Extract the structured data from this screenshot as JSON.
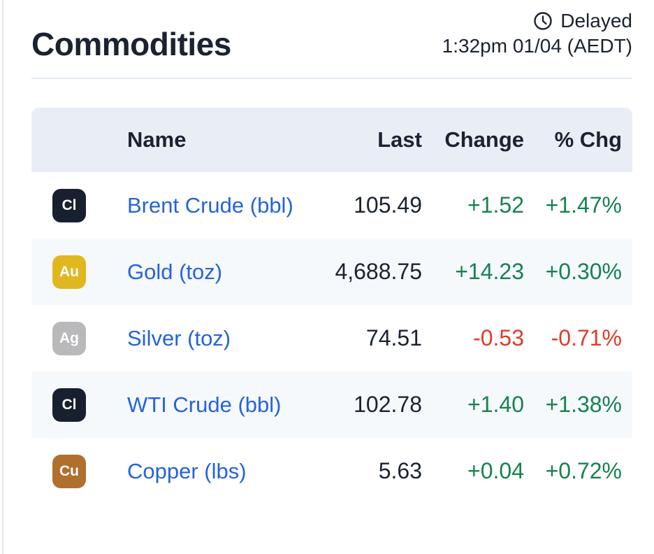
{
  "header": {
    "title": "Commodities",
    "status": {
      "label": "Delayed",
      "timestamp": "1:32pm 01/04 (AEDT)"
    }
  },
  "table": {
    "columns": [
      "Name",
      "Last",
      "Change",
      "% Chg"
    ],
    "rows": [
      {
        "symbol": "Cl",
        "badge_color": "#18202f",
        "name": "Brent Crude (bbl)",
        "last": "105.49",
        "change": "+1.52",
        "pct_chg": "+1.47%",
        "direction": "up"
      },
      {
        "symbol": "Au",
        "badge_color": "#e1b71f",
        "name": "Gold (toz)",
        "last": "4,688.75",
        "change": "+14.23",
        "pct_chg": "+0.30%",
        "direction": "up"
      },
      {
        "symbol": "Ag",
        "badge_color": "#b9b9bb",
        "name": "Silver (toz)",
        "last": "74.51",
        "change": "-0.53",
        "pct_chg": "-0.71%",
        "direction": "down"
      },
      {
        "symbol": "Cl",
        "badge_color": "#18202f",
        "name": "WTI Crude (bbl)",
        "last": "102.78",
        "change": "+1.40",
        "pct_chg": "+1.38%",
        "direction": "up"
      },
      {
        "symbol": "Cu",
        "badge_color": "#b06f2d",
        "name": "Copper (lbs)",
        "last": "5.63",
        "change": "+0.04",
        "pct_chg": "+0.72%",
        "direction": "up"
      }
    ]
  },
  "colors": {
    "text": "#1b2231",
    "link": "#2563db",
    "up": "#17824f",
    "down": "#e03b27",
    "header_bg": "#e9eef6",
    "alt_row_bg": "#f6f9fc"
  }
}
